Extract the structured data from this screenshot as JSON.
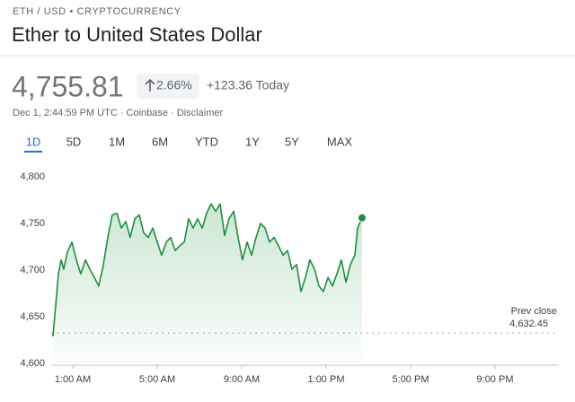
{
  "header": {
    "breadcrumb": "ETH / USD • CRYPTOCURRENCY",
    "title": "Ether to United States Dollar",
    "price": "4,755.81",
    "change_percent": "2.66%",
    "change_today": "+123.36 Today",
    "timestamp": "Dec 1, 2:44:59 PM UTC · Coinbase · Disclaimer",
    "tabs": [
      "1D",
      "5D",
      "1M",
      "6M",
      "YTD",
      "1Y",
      "5Y",
      "MAX"
    ],
    "active_tab": 0
  },
  "chart_data": {
    "type": "line",
    "series": [
      {
        "name": "ETH / USD",
        "color": "#1e8e3e",
        "x": [
          0.06,
          0.19,
          0.32,
          0.45,
          0.57,
          0.74,
          0.96,
          1.17,
          1.38,
          1.6,
          1.81,
          2.02,
          2.23,
          2.45,
          2.66,
          2.87,
          3.09,
          3.3,
          3.51,
          3.72,
          3.94,
          4.15,
          4.36,
          4.57,
          4.79,
          5.0,
          5.21,
          5.43,
          5.64,
          5.85,
          6.06,
          6.28,
          6.49,
          6.7,
          6.91,
          7.13,
          7.34,
          7.55,
          7.77,
          7.98,
          8.19,
          8.4,
          8.62,
          8.83,
          9.04,
          9.26,
          9.47,
          9.68,
          9.89,
          10.11,
          10.32,
          10.53,
          10.74,
          10.96,
          11.17,
          11.38,
          11.6,
          11.81,
          12.02,
          12.23,
          12.45,
          12.66,
          12.87,
          13.09,
          13.3,
          13.51,
          13.72,
          13.94,
          14.15,
          14.36,
          14.49,
          14.7
        ],
        "values": [
          4629,
          4662,
          4696,
          4711,
          4701,
          4719,
          4730,
          4711,
          4696,
          4711,
          4701,
          4692,
          4683,
          4706,
          4735,
          4759,
          4761,
          4745,
          4752,
          4735,
          4755,
          4759,
          4740,
          4735,
          4745,
          4730,
          4716,
          4730,
          4735,
          4721,
          4726,
          4730,
          4755,
          4745,
          4755,
          4745,
          4761,
          4771,
          4763,
          4771,
          4737,
          4755,
          4763,
          4735,
          4711,
          4730,
          4716,
          4735,
          4750,
          4745,
          4730,
          4735,
          4726,
          4716,
          4721,
          4701,
          4706,
          4677,
          4692,
          4711,
          4701,
          4683,
          4677,
          4692,
          4683,
          4696,
          4711,
          4687,
          4706,
          4716,
          4745,
          4756
        ]
      }
    ],
    "xlim": [
      0,
      24
    ],
    "xticks": [
      {
        "value": 1,
        "label": "1:00 AM"
      },
      {
        "value": 5,
        "label": "5:00 AM"
      },
      {
        "value": 9,
        "label": "9:00 AM"
      },
      {
        "value": 13,
        "label": "1:00 PM"
      },
      {
        "value": 17,
        "label": "5:00 PM"
      },
      {
        "value": 21,
        "label": "9:00 PM"
      }
    ],
    "ylim": [
      4600,
      4800
    ],
    "yticks": [
      {
        "value": 4600,
        "label": "4,600"
      },
      {
        "value": 4650,
        "label": "4,650"
      },
      {
        "value": 4700,
        "label": "4,700"
      },
      {
        "value": 4750,
        "label": "4,750"
      },
      {
        "value": 4800,
        "label": "4,800"
      }
    ],
    "prev_close": {
      "label": "Prev close",
      "value": 4632.45,
      "value_label": "4,632.45"
    }
  }
}
